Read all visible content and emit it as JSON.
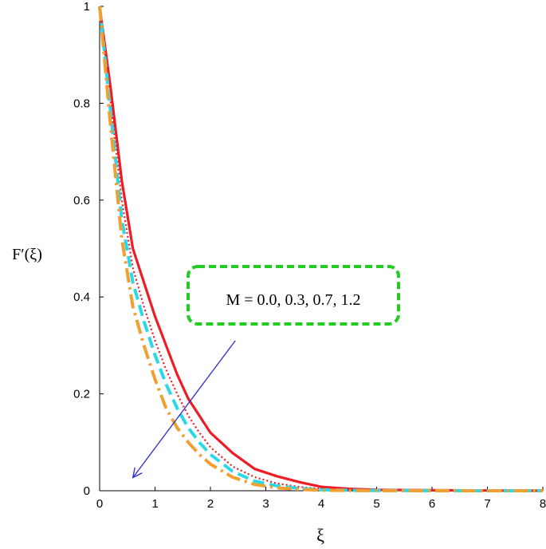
{
  "chart_data": {
    "type": "line",
    "title": "",
    "xlabel": "ξ",
    "ylabel": "F′(ξ)",
    "xlim": [
      0,
      8
    ],
    "ylim": [
      0,
      1
    ],
    "x_ticks": [
      "0",
      "1",
      "2",
      "3",
      "4",
      "5",
      "6",
      "7",
      "8"
    ],
    "y_ticks": [
      "0",
      "0.2",
      "0.4",
      "0.6",
      "0.8",
      "1"
    ],
    "grid": false,
    "legend": "none",
    "series": [
      {
        "color": "#ee1c24",
        "style": "solid",
        "x": [
          0,
          0.2,
          0.4,
          0.6,
          0.8,
          1.0,
          1.2,
          1.4,
          1.6,
          1.8,
          2.0,
          2.4,
          2.8,
          3.2,
          3.6,
          4.0,
          4.5,
          5.0,
          6.0,
          7.0,
          8.0
        ],
        "y": [
          1.0,
          0.83,
          0.64,
          0.5,
          0.43,
          0.36,
          0.3,
          0.24,
          0.19,
          0.155,
          0.12,
          0.078,
          0.045,
          0.03,
          0.018,
          0.008,
          0.004,
          0.002,
          0.001,
          0.0005,
          0.0
        ]
      },
      {
        "color": "#ee1c24",
        "style": "dotted",
        "x": [
          0,
          0.2,
          0.4,
          0.6,
          0.8,
          1.0,
          1.2,
          1.4,
          1.6,
          1.8,
          2.0,
          2.4,
          2.8,
          3.2,
          3.6,
          4.0,
          4.5,
          5.0,
          6.0,
          7.0,
          8.0
        ],
        "y": [
          1.0,
          0.8,
          0.6,
          0.46,
          0.38,
          0.31,
          0.25,
          0.2,
          0.155,
          0.12,
          0.09,
          0.05,
          0.028,
          0.015,
          0.008,
          0.004,
          0.002,
          0.001,
          0.0005,
          0.0002,
          0.0
        ]
      },
      {
        "color": "#29d9e8",
        "style": "dashed",
        "x": [
          0,
          0.2,
          0.4,
          0.6,
          0.8,
          1.0,
          1.2,
          1.4,
          1.6,
          1.8,
          2.0,
          2.4,
          2.8,
          3.2,
          3.6,
          4.0,
          4.5,
          5.0,
          6.0,
          7.0,
          8.0
        ],
        "y": [
          1.0,
          0.78,
          0.56,
          0.43,
          0.35,
          0.28,
          0.22,
          0.17,
          0.13,
          0.1,
          0.075,
          0.04,
          0.02,
          0.01,
          0.005,
          0.002,
          0.001,
          0.0005,
          0.0002,
          0.0,
          0.0
        ]
      },
      {
        "color": "#f0a030",
        "style": "dashdot",
        "x": [
          0,
          0.2,
          0.4,
          0.6,
          0.8,
          1.0,
          1.2,
          1.4,
          1.6,
          1.8,
          2.0,
          2.4,
          2.8,
          3.2,
          3.6,
          4.0,
          4.5,
          5.0,
          6.0,
          7.0,
          8.0
        ],
        "y": [
          1.0,
          0.75,
          0.52,
          0.38,
          0.3,
          0.23,
          0.17,
          0.13,
          0.1,
          0.075,
          0.055,
          0.028,
          0.013,
          0.006,
          0.003,
          0.001,
          0.0005,
          0.0002,
          0.0,
          0.0,
          0.0
        ]
      }
    ],
    "annotation": {
      "text": "M = 0.0, 0.3, 0.7, 1.2",
      "box_color": "#22cc22",
      "arrow_color": "#2a2ad0",
      "arrow_from": [
        2.45,
        0.31
      ],
      "arrow_to": [
        0.6,
        0.027
      ]
    }
  }
}
